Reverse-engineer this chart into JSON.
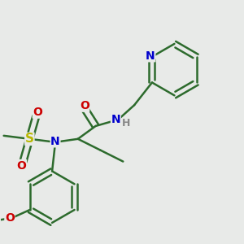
{
  "background_color": "#e8eae8",
  "bond_color": "#2d6b2d",
  "bond_width": 1.8,
  "figsize": [
    3.0,
    3.0
  ],
  "dpi": 100,
  "xlim": [
    0,
    300
  ],
  "ylim": [
    0,
    300
  ]
}
